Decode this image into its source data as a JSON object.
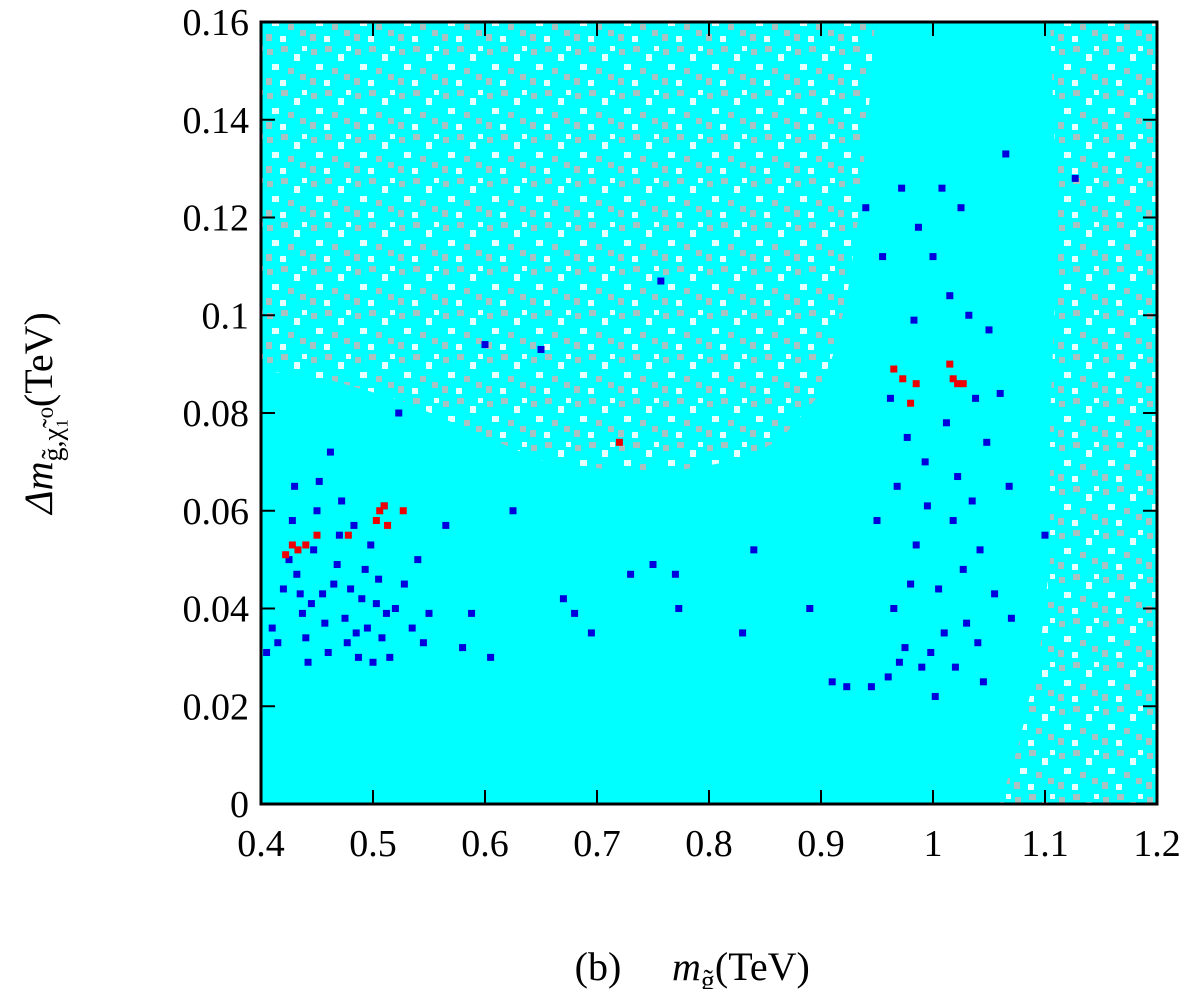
{
  "chart_data": {
    "type": "scatter",
    "panel_label": "(b)",
    "xlabel": {
      "symbol": "m",
      "subscript": "g̃",
      "unit": "(TeV)"
    },
    "ylabel": {
      "symbol": "Δm",
      "subscript": "g̃,χ̃₁⁰",
      "unit": "(TeV)"
    },
    "xlim": [
      0.4,
      1.2
    ],
    "ylim": [
      0,
      0.16
    ],
    "x_ticks": [
      0.4,
      0.5,
      0.6,
      0.7,
      0.8,
      0.9,
      1.0,
      1.1,
      1.2
    ],
    "x_tick_labels": [
      "0.4",
      "0.5",
      "0.6",
      "0.7",
      "0.8",
      "0.9",
      "1",
      "1.1",
      "1.2"
    ],
    "y_ticks": [
      0,
      0.02,
      0.04,
      0.06,
      0.08,
      0.1,
      0.12,
      0.14,
      0.16
    ],
    "y_tick_labels": [
      "0",
      "0.02",
      "0.04",
      "0.06",
      "0.08",
      "0.1",
      "0.12",
      "0.14",
      "0.16"
    ],
    "grid": false,
    "colors": {
      "background_fill": "#00ffff",
      "gray_points": "#bbbbbb",
      "blue_points": "#0000dd",
      "red_points": "#ee0000"
    },
    "series": [
      {
        "color_role": "blue_points",
        "points": [
          [
            0.405,
            0.031
          ],
          [
            0.41,
            0.036
          ],
          [
            0.415,
            0.033
          ],
          [
            0.42,
            0.044
          ],
          [
            0.425,
            0.05
          ],
          [
            0.428,
            0.058
          ],
          [
            0.43,
            0.065
          ],
          [
            0.432,
            0.047
          ],
          [
            0.435,
            0.043
          ],
          [
            0.437,
            0.039
          ],
          [
            0.44,
            0.034
          ],
          [
            0.442,
            0.029
          ],
          [
            0.445,
            0.041
          ],
          [
            0.447,
            0.052
          ],
          [
            0.45,
            0.06
          ],
          [
            0.452,
            0.066
          ],
          [
            0.455,
            0.043
          ],
          [
            0.457,
            0.037
          ],
          [
            0.46,
            0.031
          ],
          [
            0.462,
            0.072
          ],
          [
            0.465,
            0.045
          ],
          [
            0.468,
            0.049
          ],
          [
            0.47,
            0.055
          ],
          [
            0.472,
            0.062
          ],
          [
            0.475,
            0.038
          ],
          [
            0.477,
            0.033
          ],
          [
            0.48,
            0.044
          ],
          [
            0.483,
            0.057
          ],
          [
            0.485,
            0.035
          ],
          [
            0.487,
            0.03
          ],
          [
            0.49,
            0.042
          ],
          [
            0.493,
            0.048
          ],
          [
            0.495,
            0.036
          ],
          [
            0.498,
            0.053
          ],
          [
            0.5,
            0.029
          ],
          [
            0.503,
            0.041
          ],
          [
            0.505,
            0.046
          ],
          [
            0.508,
            0.034
          ],
          [
            0.51,
            0.061
          ],
          [
            0.512,
            0.039
          ],
          [
            0.515,
            0.03
          ],
          [
            0.52,
            0.04
          ],
          [
            0.523,
            0.08
          ],
          [
            0.528,
            0.045
          ],
          [
            0.535,
            0.036
          ],
          [
            0.54,
            0.05
          ],
          [
            0.545,
            0.033
          ],
          [
            0.55,
            0.039
          ],
          [
            0.565,
            0.057
          ],
          [
            0.58,
            0.032
          ],
          [
            0.588,
            0.039
          ],
          [
            0.6,
            0.094
          ],
          [
            0.605,
            0.03
          ],
          [
            0.625,
            0.06
          ],
          [
            0.65,
            0.093
          ],
          [
            0.67,
            0.042
          ],
          [
            0.68,
            0.039
          ],
          [
            0.695,
            0.035
          ],
          [
            0.73,
            0.047
          ],
          [
            0.75,
            0.049
          ],
          [
            0.757,
            0.107
          ],
          [
            0.77,
            0.047
          ],
          [
            0.773,
            0.04
          ],
          [
            0.83,
            0.035
          ],
          [
            0.84,
            0.052
          ],
          [
            0.89,
            0.04
          ],
          [
            0.91,
            0.025
          ],
          [
            0.923,
            0.024
          ],
          [
            0.94,
            0.122
          ],
          [
            0.945,
            0.024
          ],
          [
            0.95,
            0.058
          ],
          [
            0.955,
            0.112
          ],
          [
            0.96,
            0.026
          ],
          [
            0.962,
            0.083
          ],
          [
            0.965,
            0.04
          ],
          [
            0.968,
            0.065
          ],
          [
            0.97,
            0.029
          ],
          [
            0.972,
            0.126
          ],
          [
            0.975,
            0.032
          ],
          [
            0.977,
            0.075
          ],
          [
            0.98,
            0.045
          ],
          [
            0.983,
            0.099
          ],
          [
            0.985,
            0.053
          ],
          [
            0.987,
            0.118
          ],
          [
            0.99,
            0.028
          ],
          [
            0.993,
            0.07
          ],
          [
            0.995,
            0.061
          ],
          [
            0.998,
            0.031
          ],
          [
            1.0,
            0.112
          ],
          [
            1.002,
            0.022
          ],
          [
            1.005,
            0.044
          ],
          [
            1.008,
            0.126
          ],
          [
            1.01,
            0.035
          ],
          [
            1.012,
            0.078
          ],
          [
            1.015,
            0.104
          ],
          [
            1.018,
            0.058
          ],
          [
            1.02,
            0.028
          ],
          [
            1.022,
            0.067
          ],
          [
            1.025,
            0.122
          ],
          [
            1.027,
            0.048
          ],
          [
            1.03,
            0.037
          ],
          [
            1.032,
            0.1
          ],
          [
            1.035,
            0.062
          ],
          [
            1.038,
            0.083
          ],
          [
            1.04,
            0.033
          ],
          [
            1.042,
            0.052
          ],
          [
            1.045,
            0.025
          ],
          [
            1.048,
            0.074
          ],
          [
            1.05,
            0.097
          ],
          [
            1.055,
            0.043
          ],
          [
            1.06,
            0.084
          ],
          [
            1.065,
            0.133
          ],
          [
            1.068,
            0.065
          ],
          [
            1.07,
            0.038
          ],
          [
            1.1,
            0.055
          ],
          [
            1.127,
            0.128
          ]
        ]
      },
      {
        "color_role": "red_points",
        "points": [
          [
            0.422,
            0.051
          ],
          [
            0.428,
            0.053
          ],
          [
            0.433,
            0.052
          ],
          [
            0.44,
            0.053
          ],
          [
            0.45,
            0.055
          ],
          [
            0.478,
            0.055
          ],
          [
            0.503,
            0.058
          ],
          [
            0.506,
            0.06
          ],
          [
            0.51,
            0.061
          ],
          [
            0.513,
            0.057
          ],
          [
            0.527,
            0.06
          ],
          [
            0.72,
            0.074
          ],
          [
            0.965,
            0.089
          ],
          [
            0.973,
            0.087
          ],
          [
            0.98,
            0.082
          ],
          [
            0.985,
            0.086
          ],
          [
            1.015,
            0.09
          ],
          [
            1.018,
            0.087
          ],
          [
            1.022,
            0.086
          ],
          [
            1.027,
            0.086
          ]
        ]
      }
    ]
  }
}
